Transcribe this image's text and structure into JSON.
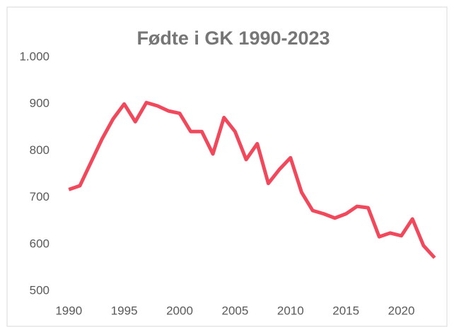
{
  "chart_data": {
    "type": "line",
    "title": "Fødte i GK 1990-2023",
    "x": [
      1990,
      1991,
      1992,
      1993,
      1994,
      1995,
      1996,
      1997,
      1998,
      1999,
      2000,
      2001,
      2002,
      2003,
      2004,
      2005,
      2006,
      2007,
      2008,
      2009,
      2010,
      2011,
      2012,
      2013,
      2014,
      2015,
      2016,
      2017,
      2018,
      2019,
      2020,
      2021,
      2022,
      2023
    ],
    "series": [
      {
        "name": "Fødte",
        "color": "#f2485b",
        "values": [
          717,
          725,
          775,
          825,
          868,
          900,
          862,
          903,
          896,
          885,
          880,
          841,
          841,
          793,
          871,
          841,
          781,
          815,
          730,
          760,
          785,
          711,
          672,
          665,
          656,
          665,
          681,
          678,
          616,
          624,
          618,
          654,
          597,
          571
        ]
      }
    ],
    "xlim": [
      1988.9,
      2023.6
    ],
    "xticks": [
      1990,
      1995,
      2000,
      2005,
      2010,
      2015,
      2020
    ],
    "ylim": [
      500,
      1000
    ],
    "yticks": [
      500,
      600,
      700,
      800,
      900,
      {
        "value": 1000,
        "label": "1.000"
      }
    ],
    "grid": false
  }
}
